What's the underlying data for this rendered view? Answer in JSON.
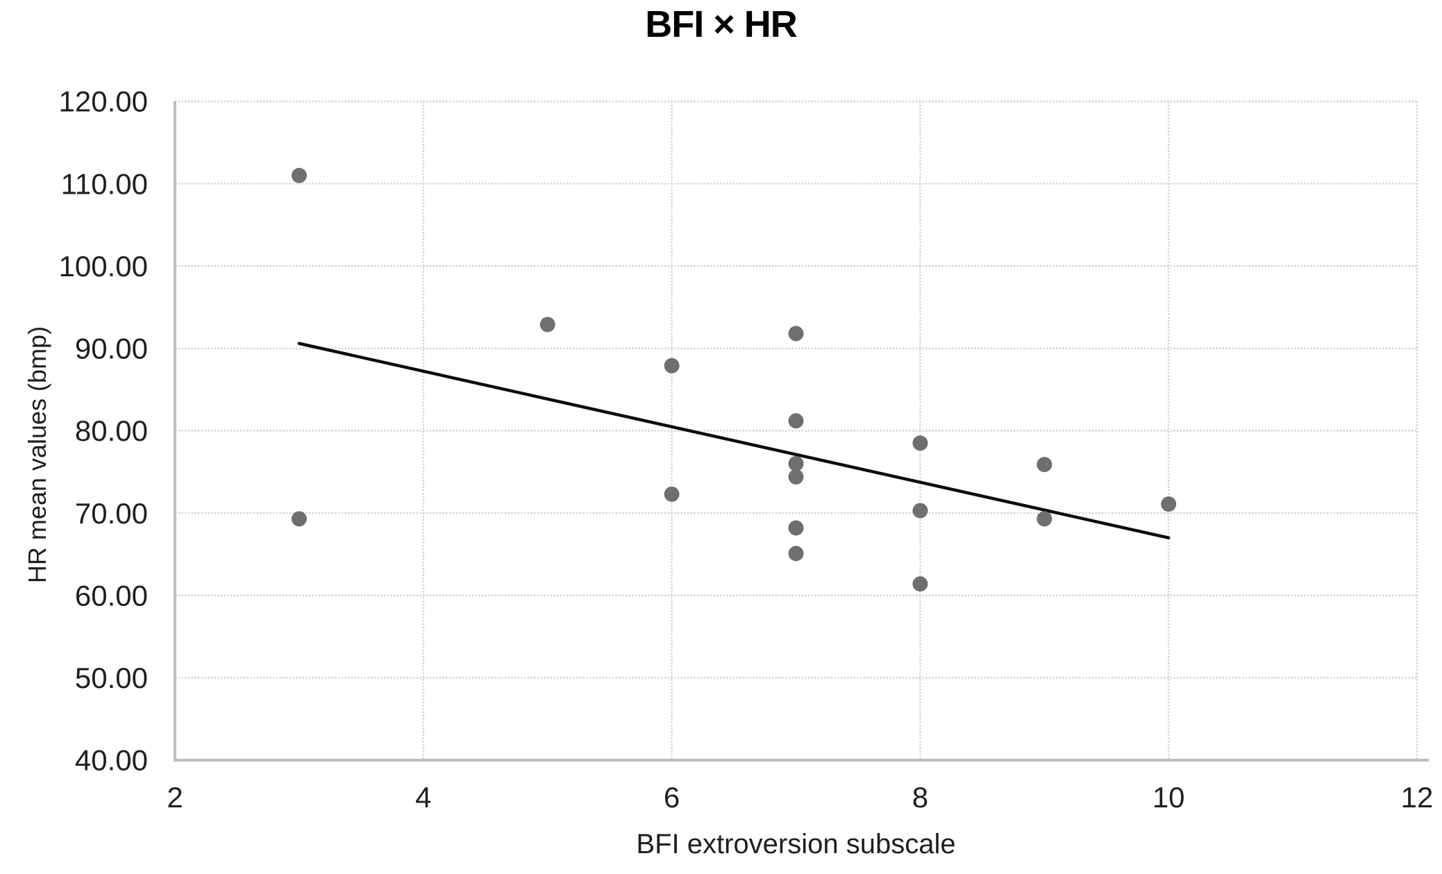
{
  "page": {
    "background": "#ffffff"
  },
  "chart_data": {
    "type": "scatter",
    "title": "BFI × HR",
    "xlabel": "BFI extroversion subscale",
    "ylabel": "HR mean values (bmp)",
    "xlim": [
      2,
      12
    ],
    "ylim": [
      40,
      120
    ],
    "x_tick_labels": [
      "2",
      "4",
      "6",
      "8",
      "10",
      "12"
    ],
    "y_tick_labels": [
      "120.00",
      "110.00",
      "100.00",
      "90.00",
      "80.00",
      "70.00",
      "60.00",
      "50.00",
      "40.00"
    ],
    "grid": true,
    "legend_position": "none",
    "series": [
      {
        "name": "HR mean values",
        "marker": "circle",
        "color": "#716e6e",
        "points": [
          {
            "x": 3,
            "y": 111.0
          },
          {
            "x": 3,
            "y": 69.3
          },
          {
            "x": 5,
            "y": 92.9
          },
          {
            "x": 6,
            "y": 87.9
          },
          {
            "x": 6,
            "y": 72.3
          },
          {
            "x": 7,
            "y": 91.8
          },
          {
            "x": 7,
            "y": 81.2
          },
          {
            "x": 7,
            "y": 76.0
          },
          {
            "x": 7,
            "y": 74.4
          },
          {
            "x": 7,
            "y": 68.2
          },
          {
            "x": 7,
            "y": 65.1
          },
          {
            "x": 8,
            "y": 78.5
          },
          {
            "x": 8,
            "y": 70.3
          },
          {
            "x": 8,
            "y": 61.4
          },
          {
            "x": 9,
            "y": 75.9
          },
          {
            "x": 9,
            "y": 69.3
          },
          {
            "x": 10,
            "y": 71.1
          }
        ]
      }
    ],
    "trendline": {
      "x1": 3.0,
      "y1": 90.6,
      "x2": 10.0,
      "y2": 67.0,
      "color": "#0d0d0d"
    },
    "colors": {
      "gridline": "#d4d4d4",
      "axis_line": "#bfbfbf",
      "tick_text": "#1f1f1f",
      "title_text": "#000000"
    }
  }
}
